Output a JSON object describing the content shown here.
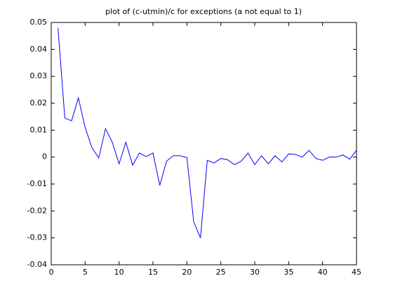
{
  "chart_data": {
    "type": "line",
    "title": "plot of (c-utmin)/c for exceptions (a not equal to 1)",
    "x": [
      1,
      2,
      3,
      4,
      5,
      6,
      7,
      8,
      9,
      10,
      11,
      12,
      13,
      14,
      15,
      16,
      17,
      18,
      19,
      20,
      21,
      22,
      23,
      24,
      25,
      26,
      27,
      28,
      29,
      30,
      31,
      32,
      33,
      34,
      35,
      36,
      37,
      38,
      39,
      40,
      41,
      42,
      43,
      44,
      45
    ],
    "series": [
      {
        "color": "#0000ff",
        "values": [
          0.048,
          0.0145,
          0.0135,
          0.022,
          0.011,
          0.0035,
          -0.0003,
          0.0105,
          0.0055,
          -0.0025,
          0.0055,
          -0.003,
          0.0015,
          0.0002,
          0.0015,
          -0.0105,
          -0.0015,
          0.0005,
          0.0005,
          -0.0002,
          -0.024,
          -0.03,
          -0.0012,
          -0.0022,
          -0.0005,
          -0.001,
          -0.0028,
          -0.0015,
          0.0015,
          -0.0028,
          0.0005,
          -0.0025,
          0.0005,
          -0.0018,
          0.0012,
          0.001,
          0,
          0.0025,
          -0.0005,
          -0.0012,
          0,
          0,
          0.0008,
          -0.0008,
          0.0025
        ]
      }
    ],
    "xlim": [
      0,
      45
    ],
    "xticks": [
      0,
      5,
      10,
      15,
      20,
      25,
      30,
      35,
      40,
      45
    ],
    "ylim": [
      -0.04,
      0.05
    ],
    "yticks": [
      -0.04,
      -0.03,
      -0.02,
      -0.01,
      0,
      0.01,
      0.02,
      0.03,
      0.04,
      0.05
    ],
    "grid": false
  }
}
